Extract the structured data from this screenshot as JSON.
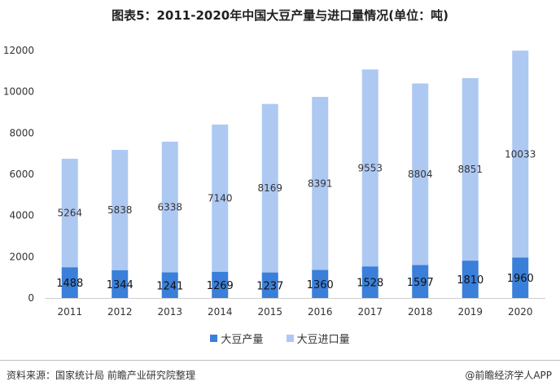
{
  "title": "图表5：2011-2020年中国大豆产量与进口量情况(单位：吨)",
  "chart_data": {
    "type": "bar",
    "stacked": true,
    "categories": [
      "2011",
      "2012",
      "2013",
      "2014",
      "2015",
      "2016",
      "2017",
      "2018",
      "2019",
      "2020"
    ],
    "series": [
      {
        "name": "大豆产量",
        "color": "#3a7fd9",
        "values": [
          1488,
          1344,
          1241,
          1269,
          1237,
          1360,
          1528,
          1597,
          1810,
          1960
        ]
      },
      {
        "name": "大豆进口量",
        "color": "#adc9f2",
        "values": [
          5264,
          5838,
          6338,
          7140,
          8169,
          8391,
          9553,
          8804,
          8851,
          10033
        ]
      }
    ],
    "yticks": [
      "0",
      "2000",
      "4000",
      "6000",
      "8000",
      "10000",
      "12000"
    ],
    "ylim": [
      0,
      12000
    ],
    "legend_position": "bottom"
  },
  "legend": {
    "items": [
      {
        "label": "大豆产量",
        "color": "#3a7fd9"
      },
      {
        "label": "大豆进口量",
        "color": "#adc9f2"
      }
    ]
  },
  "footer": {
    "source": "资料来源：国家统计局 前瞻产业研究院整理",
    "brand": "@前瞻经济学人APP"
  }
}
